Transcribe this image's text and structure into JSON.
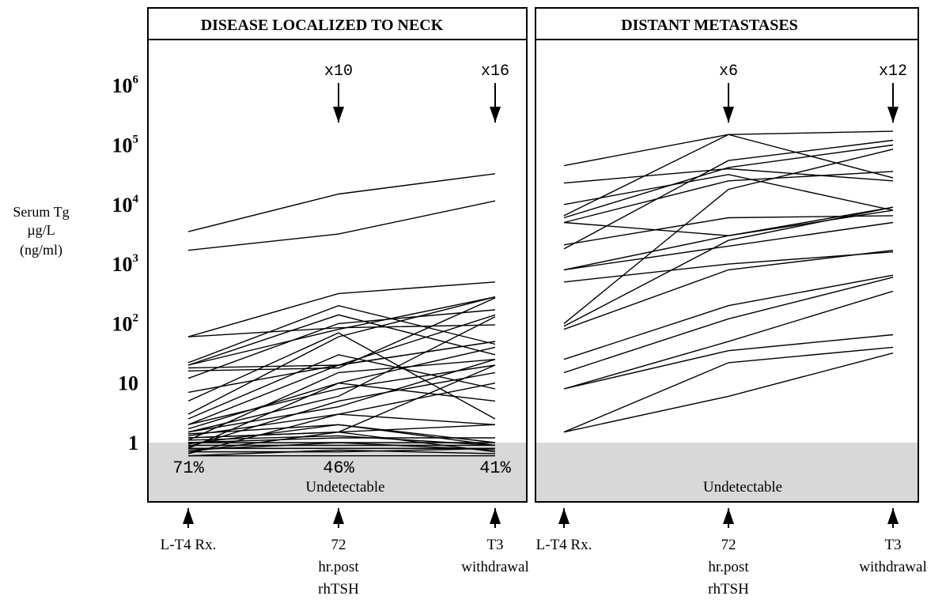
{
  "chart_data": {
    "type": "line",
    "y_axis": {
      "label": [
        "Serum Tg",
        "µg/L",
        "(ng/ml)"
      ],
      "scale": "log",
      "ticks": [
        {
          "value": 1,
          "base": "1",
          "exp": ""
        },
        {
          "value": 10,
          "base": "10",
          "exp": ""
        },
        {
          "value": 100,
          "base": "10",
          "exp": "2"
        },
        {
          "value": 1000,
          "base": "10",
          "exp": "3"
        },
        {
          "value": 10000,
          "base": "10",
          "exp": "4"
        },
        {
          "value": 100000,
          "base": "10",
          "exp": "5"
        },
        {
          "value": 1000000,
          "base": "10",
          "exp": "6"
        }
      ]
    },
    "undetectable_threshold": 1,
    "panels": [
      {
        "title": "DISEASE LOCALIZED TO NECK",
        "categories": [
          [
            "L-T4 Rx."
          ],
          [
            "72",
            "hr.post",
            "rhTSH"
          ],
          [
            "T3",
            "withdrawal"
          ]
        ],
        "multipliers": [
          "",
          "x10",
          "x16"
        ],
        "undetectable_percents": [
          "71%",
          "46%",
          "41%"
        ],
        "undetectable_label": "Undetectable",
        "series": [
          {
            "values": [
              3500,
              15000,
              33000
            ]
          },
          {
            "values": [
              1700,
              3200,
              11500
            ]
          },
          {
            "values": [
              60,
              320,
              500
            ]
          },
          {
            "values": [
              60,
              85,
              95
            ]
          },
          {
            "values": [
              22,
              200,
              45
            ]
          },
          {
            "values": [
              20,
              80,
              280
            ]
          },
          {
            "values": [
              20,
              140,
              30
            ]
          },
          {
            "values": [
              18,
              20,
              140
            ]
          },
          {
            "values": [
              16,
              18,
              270
            ]
          },
          {
            "values": [
              12,
              100,
              170
            ]
          },
          {
            "values": [
              7,
              20,
              50
            ]
          },
          {
            "values": [
              5,
              70,
              2.5
            ]
          },
          {
            "values": [
              3,
              60,
              280
            ]
          },
          {
            "values": [
              2.5,
              30,
              8
            ]
          },
          {
            "values": [
              2,
              20,
              50
            ]
          },
          {
            "values": [
              2,
              8,
              20
            ]
          },
          {
            "values": [
              1.7,
              10,
              40
            ]
          },
          {
            "values": [
              1.5,
              4,
              25
            ]
          },
          {
            "values": [
              1.5,
              6,
              130
            ]
          },
          {
            "values": [
              1.4,
              2,
              1
            ]
          },
          {
            "values": [
              1.3,
              3,
              10
            ]
          },
          {
            "values": [
              1.2,
              1.5,
              2
            ]
          },
          {
            "values": [
              1.2,
              1.5,
              20
            ]
          },
          {
            "values": [
              1.1,
              1.3,
              0.9
            ]
          },
          {
            "values": [
              1.1,
              15,
              25
            ]
          },
          {
            "values": [
              1,
              1.2,
              1.2
            ]
          },
          {
            "values": [
              1,
              1,
              1
            ]
          },
          {
            "values": [
              0.95,
              2,
              0.9
            ]
          },
          {
            "values": [
              0.9,
              0.9,
              0.9
            ]
          },
          {
            "values": [
              0.85,
              5,
              15
            ]
          },
          {
            "values": [
              0.8,
              0.8,
              0.8
            ]
          },
          {
            "values": [
              0.8,
              10,
              5
            ]
          },
          {
            "values": [
              0.75,
              1,
              0.75
            ]
          },
          {
            "values": [
              0.7,
              0.7,
              0.8
            ]
          },
          {
            "values": [
              0.7,
              1.5,
              0.7
            ]
          },
          {
            "values": [
              0.65,
              3,
              2
            ]
          },
          {
            "values": [
              0.6,
              0.75,
              0.65
            ]
          },
          {
            "values": [
              0.6,
              0.6,
              0.6
            ]
          }
        ]
      },
      {
        "title": "DISTANT METASTASES",
        "categories": [
          [
            "L-T4 Rx."
          ],
          [
            "72",
            "hr.post",
            "rhTSH"
          ],
          [
            "T3",
            "withdrawal"
          ]
        ],
        "multipliers": [
          "",
          "x6",
          "x12"
        ],
        "undetectable_percents": [
          "",
          "",
          ""
        ],
        "undetectable_label": "Undetectable",
        "series": [
          {
            "values": [
              45000,
              150000,
              170000
            ]
          },
          {
            "values": [
              23000,
              40000,
              25000
            ]
          },
          {
            "values": [
              10000,
              32000,
              8000
            ]
          },
          {
            "values": [
              6500,
              150000,
              28000
            ]
          },
          {
            "values": [
              6000,
              42000,
              100000
            ]
          },
          {
            "values": [
              5000,
              25000,
              36000
            ]
          },
          {
            "values": [
              5000,
              3000,
              9000
            ]
          },
          {
            "values": [
              2100,
              6000,
              6500
            ]
          },
          {
            "values": [
              1800,
              55000,
              120000
            ]
          },
          {
            "values": [
              800,
              2000,
              5000
            ]
          },
          {
            "values": [
              800,
              3000,
              8000
            ]
          },
          {
            "values": [
              500,
              1000,
              1600
            ]
          },
          {
            "values": [
              100,
              18000,
              85000
            ]
          },
          {
            "values": [
              90,
              2500,
              9000
            ]
          },
          {
            "values": [
              80,
              800,
              1700
            ]
          },
          {
            "values": [
              25,
              200,
              650
            ]
          },
          {
            "values": [
              15,
              120,
              600
            ]
          },
          {
            "values": [
              8,
              35,
              65
            ]
          },
          {
            "values": [
              8,
              50,
              350
            ]
          },
          {
            "values": [
              1.5,
              22,
              40
            ]
          },
          {
            "values": [
              1.5,
              6,
              32
            ]
          }
        ]
      }
    ]
  }
}
